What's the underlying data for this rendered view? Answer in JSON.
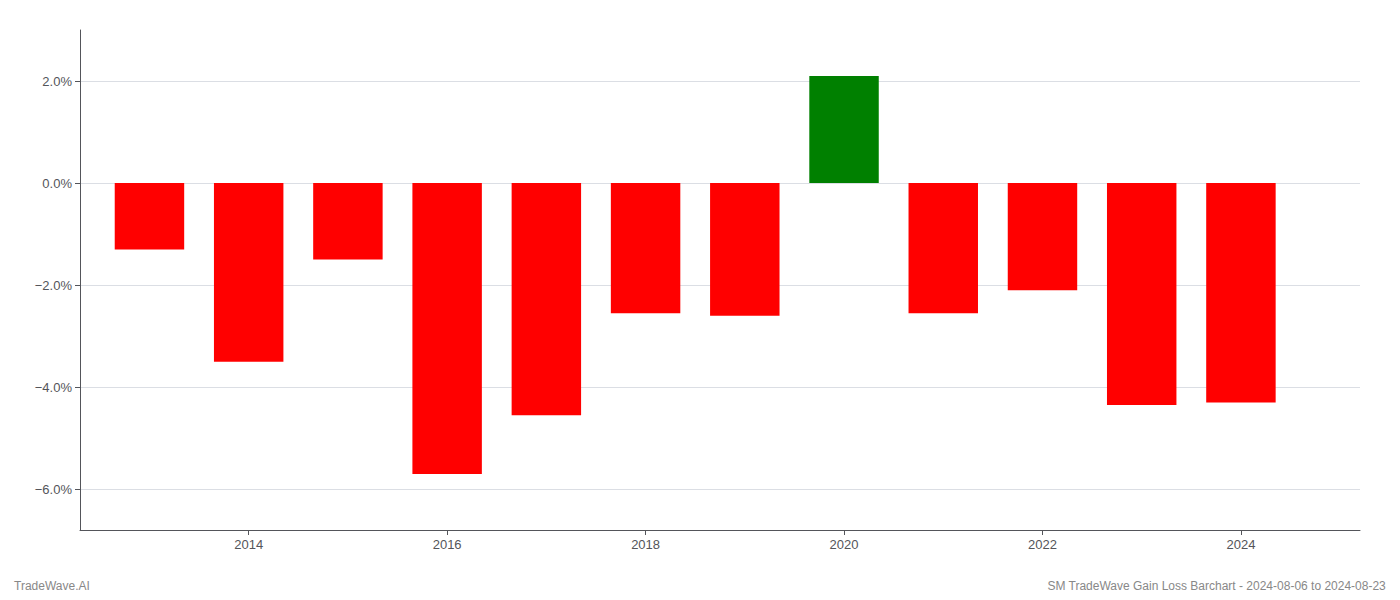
{
  "chart_data": {
    "type": "bar",
    "x": [
      2013,
      2014,
      2015,
      2016,
      2017,
      2018,
      2019,
      2020,
      2021,
      2022,
      2023,
      2024
    ],
    "values": [
      -1.3,
      -3.5,
      -1.5,
      -5.7,
      -4.55,
      -2.55,
      -2.6,
      2.1,
      -2.55,
      -2.1,
      -4.35,
      -4.3
    ],
    "colors": [
      "#ff0000",
      "#ff0000",
      "#ff0000",
      "#ff0000",
      "#ff0000",
      "#ff0000",
      "#ff0000",
      "#008000",
      "#ff0000",
      "#ff0000",
      "#ff0000",
      "#ff0000"
    ],
    "xlim": [
      2012.3,
      2025.2
    ],
    "xticks": [
      2014,
      2016,
      2018,
      2020,
      2022,
      2024
    ],
    "ylim": [
      -6.8,
      3.0
    ],
    "yticks": [
      {
        "value": -6.0,
        "label": "−6.0%"
      },
      {
        "value": -4.0,
        "label": "−4.0%"
      },
      {
        "value": -2.0,
        "label": "−2.0%"
      },
      {
        "value": 0.0,
        "label": "0.0%"
      },
      {
        "value": 2.0,
        "label": "2.0%"
      }
    ],
    "grid": true,
    "annotations": [
      "TradeWave.AI",
      "SM TradeWave Gain Loss Barchart - 2024-08-06 to 2024-08-23"
    ]
  }
}
